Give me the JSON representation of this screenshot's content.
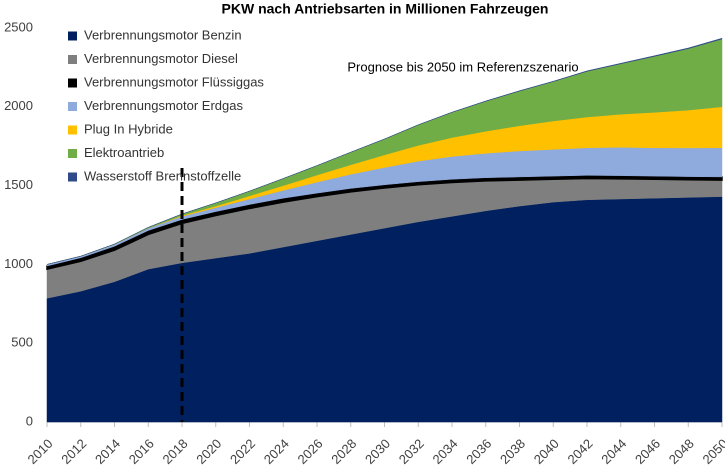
{
  "chart_data": {
    "type": "stacked_area",
    "title": "PKW nach Antriebsarten in Millionen Fahrzeugen",
    "annotation": "Prognose bis 2050 im Referenzszenario",
    "forecast_line_x": 2018,
    "x": [
      2010,
      2012,
      2014,
      2016,
      2018,
      2020,
      2022,
      2024,
      2026,
      2028,
      2030,
      2032,
      2034,
      2036,
      2038,
      2040,
      2042,
      2044,
      2046,
      2048,
      2050
    ],
    "xlim": [
      2010,
      2050
    ],
    "xticks": [
      2010,
      2012,
      2014,
      2016,
      2018,
      2020,
      2022,
      2024,
      2026,
      2028,
      2030,
      2032,
      2034,
      2036,
      2038,
      2040,
      2042,
      2044,
      2046,
      2048,
      2050
    ],
    "ylim": [
      0,
      2500
    ],
    "yticks": [
      0,
      500,
      1000,
      1500,
      2000,
      2500
    ],
    "series": [
      {
        "name": "Verbrennungsmotor Benzin",
        "color": "#002060",
        "values": [
          785,
          830,
          890,
          970,
          1010,
          1040,
          1070,
          1110,
          1150,
          1190,
          1230,
          1270,
          1305,
          1340,
          1370,
          1395,
          1410,
          1415,
          1420,
          1425,
          1430
        ]
      },
      {
        "name": "Verbrennungsmotor Diesel",
        "color": "#7f7f7f",
        "values": [
          185,
          190,
          200,
          220,
          250,
          270,
          285,
          285,
          280,
          270,
          255,
          235,
          215,
          190,
          165,
          145,
          135,
          128,
          120,
          112,
          105
        ]
      },
      {
        "name": "Verbrennungsmotor Flüssiggas",
        "color": "#000000",
        "values": [
          20,
          22,
          25,
          25,
          25,
          25,
          25,
          25,
          22,
          22,
          20,
          20,
          20,
          20,
          20,
          20,
          20,
          20,
          20,
          20,
          20
        ]
      },
      {
        "name": "Verbrennungsmotor Erdgas",
        "color": "#8faadc",
        "values": [
          10,
          10,
          12,
          15,
          20,
          25,
          35,
          50,
          70,
          90,
          110,
          130,
          145,
          155,
          165,
          170,
          175,
          180,
          180,
          182,
          185
        ]
      },
      {
        "name": "Plug In Hybride",
        "color": "#ffc000",
        "values": [
          0,
          0,
          0,
          0,
          5,
          10,
          20,
          30,
          45,
          60,
          80,
          100,
          120,
          140,
          160,
          180,
          195,
          210,
          225,
          240,
          260
        ]
      },
      {
        "name": "Elektroantrieb",
        "color": "#70ad47",
        "values": [
          0,
          0,
          2,
          5,
          10,
          20,
          30,
          45,
          60,
          80,
          100,
          130,
          160,
          190,
          220,
          250,
          290,
          320,
          355,
          390,
          430
        ]
      },
      {
        "name": "Wasserstoff Brennstoffzelle",
        "color": "#2f4a8a",
        "values": [
          0,
          0,
          0,
          0,
          0,
          0,
          0,
          0,
          0,
          0,
          1,
          1,
          1,
          2,
          2,
          2,
          3,
          3,
          4,
          4,
          5
        ]
      }
    ]
  }
}
